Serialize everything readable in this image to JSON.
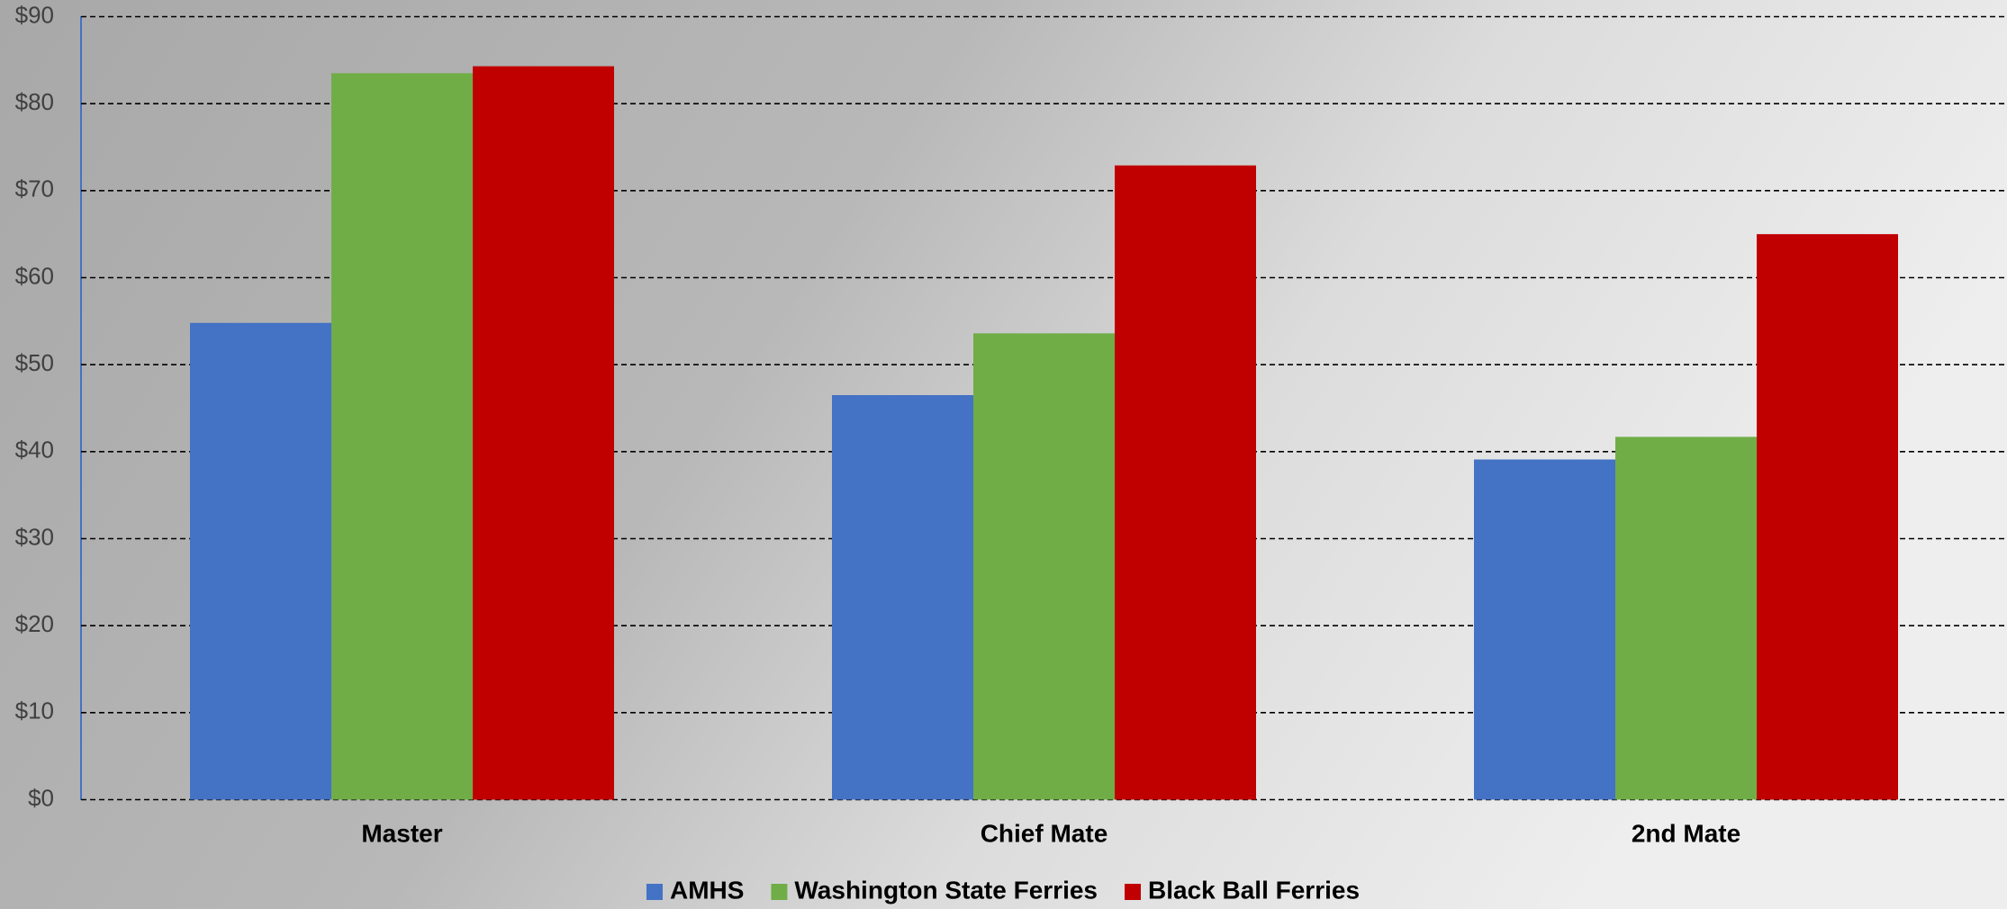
{
  "chart_data": {
    "type": "bar",
    "categories": [
      "Master",
      "Chief Mate",
      "2nd Mate"
    ],
    "series": [
      {
        "name": "AMHS",
        "color": "#4472c4",
        "values": [
          54.8,
          46.5,
          39.1
        ]
      },
      {
        "name": "Washington State Ferries",
        "color": "#70ad47",
        "values": [
          83.5,
          53.6,
          41.7
        ]
      },
      {
        "name": "Black Ball Ferries",
        "color": "#c00000",
        "values": [
          84.3,
          72.9,
          65.0
        ]
      }
    ],
    "ylim": [
      0,
      90
    ],
    "yticks": [
      {
        "value": 0,
        "label": "$0"
      },
      {
        "value": 10,
        "label": "$10"
      },
      {
        "value": 20,
        "label": "$20"
      },
      {
        "value": 30,
        "label": "$30"
      },
      {
        "value": 40,
        "label": "$40"
      },
      {
        "value": 50,
        "label": "$50"
      },
      {
        "value": 60,
        "label": "$60"
      },
      {
        "value": 70,
        "label": "$70"
      },
      {
        "value": 80,
        "label": "$80"
      },
      {
        "value": 90,
        "label": "$90"
      }
    ],
    "grid": true,
    "legend": "bottom"
  }
}
